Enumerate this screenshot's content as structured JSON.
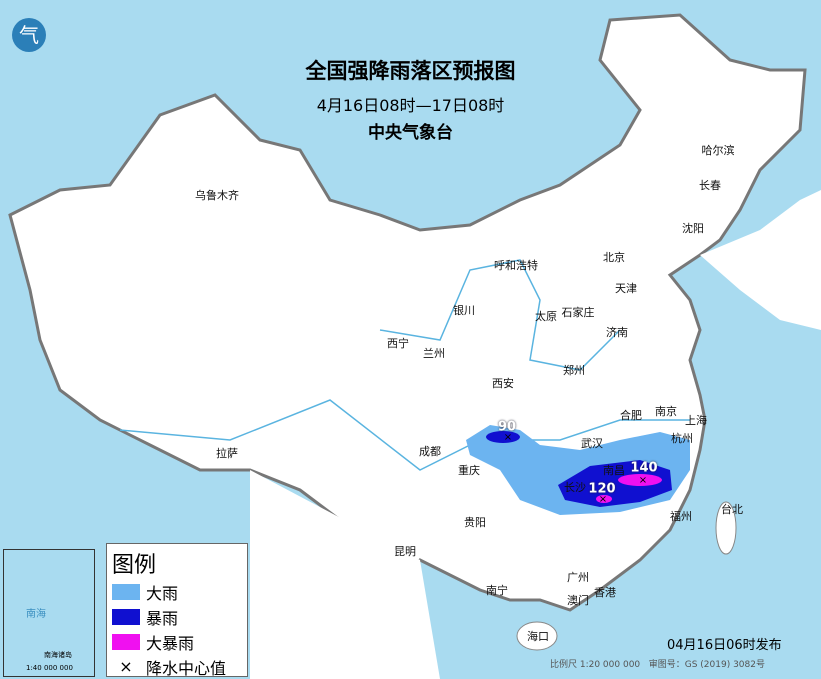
{
  "header": {
    "title": "全国强降雨落区预报图",
    "period": "4月16日08时—17日08时",
    "organization": "中央气象台",
    "logo_text": "气"
  },
  "colors": {
    "heavy_rain": "#6cb4f0",
    "rainstorm": "#1010d0",
    "heavy_rainstorm": "#f010f0",
    "sea": "#a9dbf0",
    "land": "#ffffff"
  },
  "cities": [
    "乌鲁木齐",
    "哈尔滨",
    "长春",
    "沈阳",
    "呼和浩特",
    "北京",
    "天津",
    "石家庄",
    "太原",
    "银川",
    "济南",
    "西宁",
    "兰州",
    "郑州",
    "西安",
    "合肥",
    "南京",
    "上海",
    "武汉",
    "杭州",
    "成都",
    "重庆",
    "拉萨",
    "贵阳",
    "昆明",
    "福州",
    "台北",
    "南宁",
    "广州",
    "澳门",
    "香港",
    "海口",
    "南昌",
    "长沙"
  ],
  "rain_center_values": [
    "90",
    "120",
    "140"
  ],
  "legend": {
    "title": "图例",
    "items": [
      {
        "label": "大雨",
        "color": "#6cb4f0"
      },
      {
        "label": "暴雨",
        "color": "#1010d0"
      },
      {
        "label": "大暴雨",
        "color": "#f010f0"
      },
      {
        "label": "降水中心值",
        "symbol": "×"
      }
    ]
  },
  "inset": {
    "sea_label": "南海",
    "islands_label": "南海诸岛",
    "scale": "1:40 000 000"
  },
  "footer": {
    "published": "04月16日06时发布",
    "scale": "比例尺 1:20 000 000",
    "review_number": "审图号：GS (2019) 3082号"
  }
}
